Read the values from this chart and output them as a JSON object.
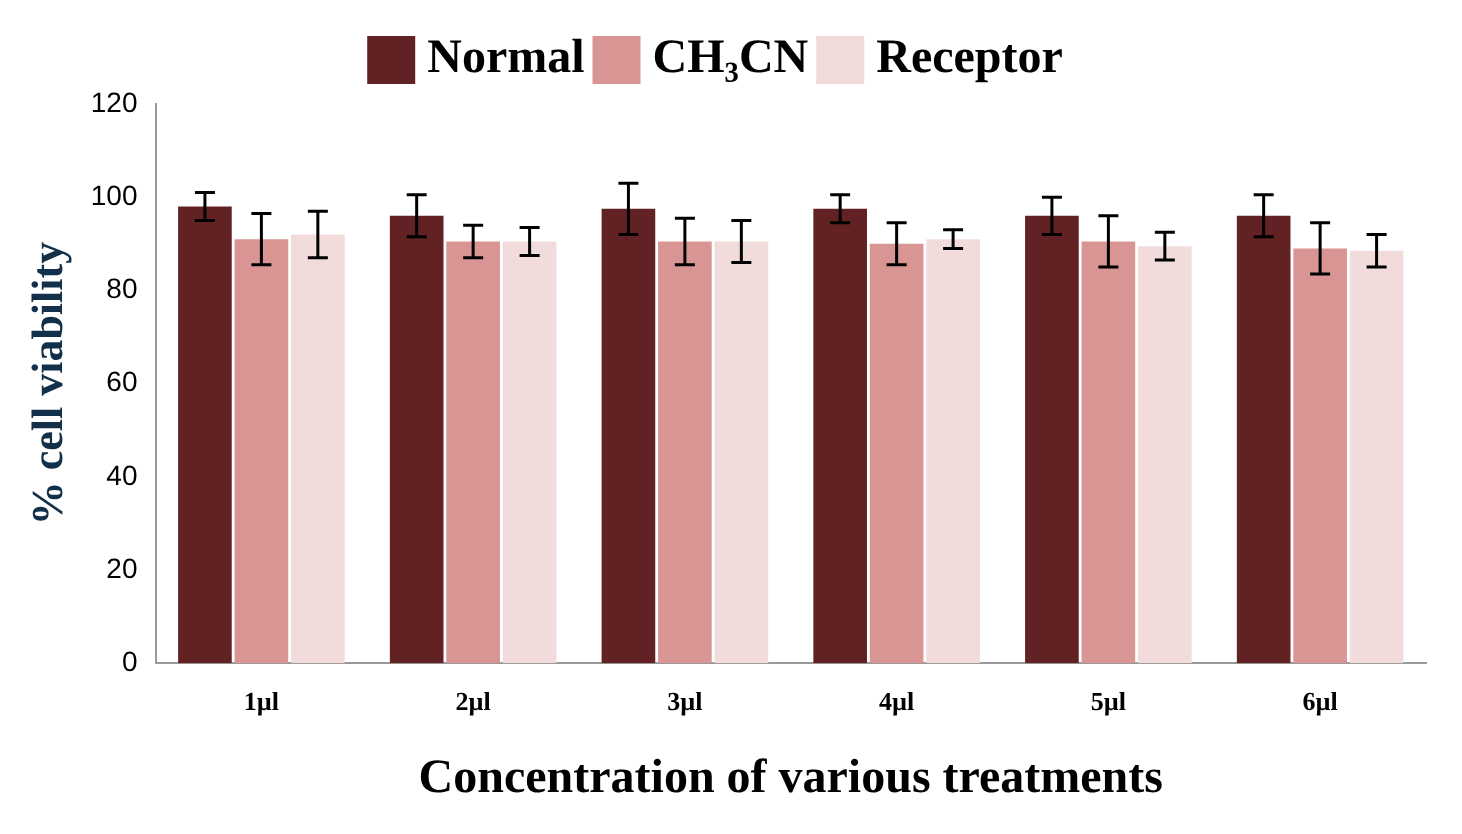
{
  "chart_data": {
    "type": "bar",
    "xlabel": "Concentration of various treatments",
    "ylabel": "% cell viability",
    "categories": [
      "1µl",
      "2µl",
      "3µl",
      "4µl",
      "5µl",
      "6µl"
    ],
    "series": [
      {
        "name": "Normal",
        "color": "#622223",
        "values": [
          98,
          96,
          97.5,
          97.5,
          96,
          96
        ],
        "errors": [
          3,
          4.5,
          5.5,
          3,
          4,
          4.5
        ]
      },
      {
        "name": "CH₃CN",
        "color": "#d99594",
        "values": [
          91,
          90.5,
          90.5,
          90,
          90.5,
          89
        ],
        "errors": [
          5.5,
          3.5,
          5,
          4.5,
          5.5,
          5.5
        ]
      },
      {
        "name": "Receptor",
        "color": "#f2dcdb",
        "values": [
          92,
          90.5,
          90.5,
          91,
          89.5,
          88.5
        ],
        "errors": [
          5,
          3,
          4.5,
          2,
          3,
          3.5
        ]
      }
    ],
    "ylim": [
      0,
      120
    ],
    "yticks": [
      0,
      20,
      40,
      60,
      80,
      100,
      120
    ],
    "grid": false,
    "legend": "top"
  }
}
